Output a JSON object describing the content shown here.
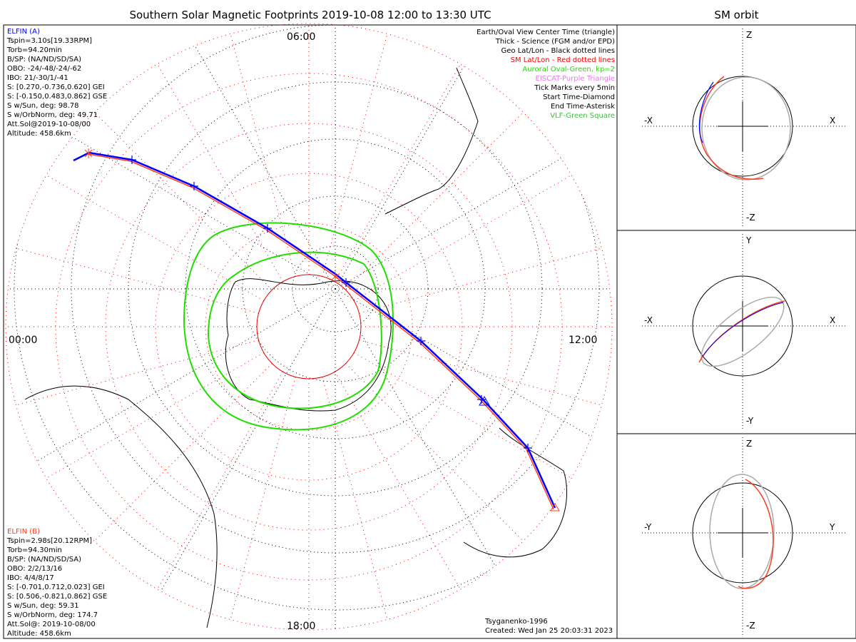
{
  "title": "Southern Solar Magnetic Footprints 2019-10-08 12:00 to 13:30 UTC",
  "orbit_title": "SM orbit",
  "hour_labels": {
    "top": "06:00",
    "left": "00:00",
    "right": "12:00",
    "bottom": "18:00"
  },
  "elfin_a": {
    "name": "ELFIN (A)",
    "color": "#0000ff",
    "lines": [
      "Tspin=3.10s[19.33RPM]",
      "Torb=94.20min",
      "B/SP: (NA/ND/SD/SA)",
      "OBO: -24/-48/-24/-62",
      "IBO: 21/-30/1/-41",
      "S: [0.270,-0.736,0.620] GEI",
      "S: [-0.150,0.483,0.862] GSE",
      "S w/Sun, deg: 98.78",
      "S w/OrbNorm, deg: 49.71",
      "Att.Sol@2019-10-08/00",
      "Altitude: 458.6km"
    ]
  },
  "elfin_b": {
    "name": "ELFIN (B)",
    "color": "#ff3b1f",
    "lines": [
      "Tspin=2.98s[20.12RPM]",
      "Torb=94.30min",
      "B/SP: (NA/ND/SD/SA)",
      "OBO: 2/2/13/16",
      "IBO: 4/4/8/17",
      "S: [-0.701,0.712,0.023] GEI",
      "S: [0.506,-0.821,0.862] GSE",
      "S w/Sun, deg: 59.31",
      "S w/OrbNorm, deg: 174.7",
      "Att.Sol@: 2019-10-08/00",
      "Altitude: 458.6km"
    ]
  },
  "legend": [
    {
      "text": "Earth/Oval View Center Time (triangle)",
      "color": "#000000"
    },
    {
      "text": "Thick - Science (FGM and/or EPD)",
      "color": "#000000"
    },
    {
      "text": "Geo Lat/Lon - Black dotted lines",
      "color": "#000000"
    },
    {
      "text": "SM Lat/Lon - Red dotted lines",
      "color": "#ff0000"
    },
    {
      "text": "Auroral Oval-Green, kp=2",
      "color": "#22dd00"
    },
    {
      "text": "EISCAT-Purple Triangle",
      "color": "#ee77ee"
    },
    {
      "text": "Tick Marks every 5min",
      "color": "#000000"
    },
    {
      "text": "Start Time-Diamond",
      "color": "#000000"
    },
    {
      "text": "End Time-Asterisk",
      "color": "#000000"
    },
    {
      "text": "VLF-Green Square",
      "color": "#44bb44"
    }
  ],
  "credits": {
    "model": "Tsyganenko-1996",
    "created": "Created: Wed Jan 25 20:03:31 2023"
  },
  "orbit_panels": [
    {
      "h_neg": "-X",
      "h_pos": "X",
      "v_pos": "Z",
      "v_neg": "-Z"
    },
    {
      "h_neg": "-X",
      "h_pos": "X",
      "v_pos": "Y",
      "v_neg": "-Y"
    },
    {
      "h_neg": "-Y",
      "h_pos": "Y",
      "v_pos": "Z",
      "v_neg": "-Z"
    }
  ],
  "chart_data": {
    "type": "polar-map",
    "projection": "southern SM polar",
    "series": [
      {
        "name": "ELFIN (A)",
        "color": "#0000ff"
      },
      {
        "name": "ELFIN (B)",
        "color": "#ff3b1f"
      },
      {
        "name": "Auroral Oval kp=2",
        "color": "#22dd00"
      }
    ]
  }
}
